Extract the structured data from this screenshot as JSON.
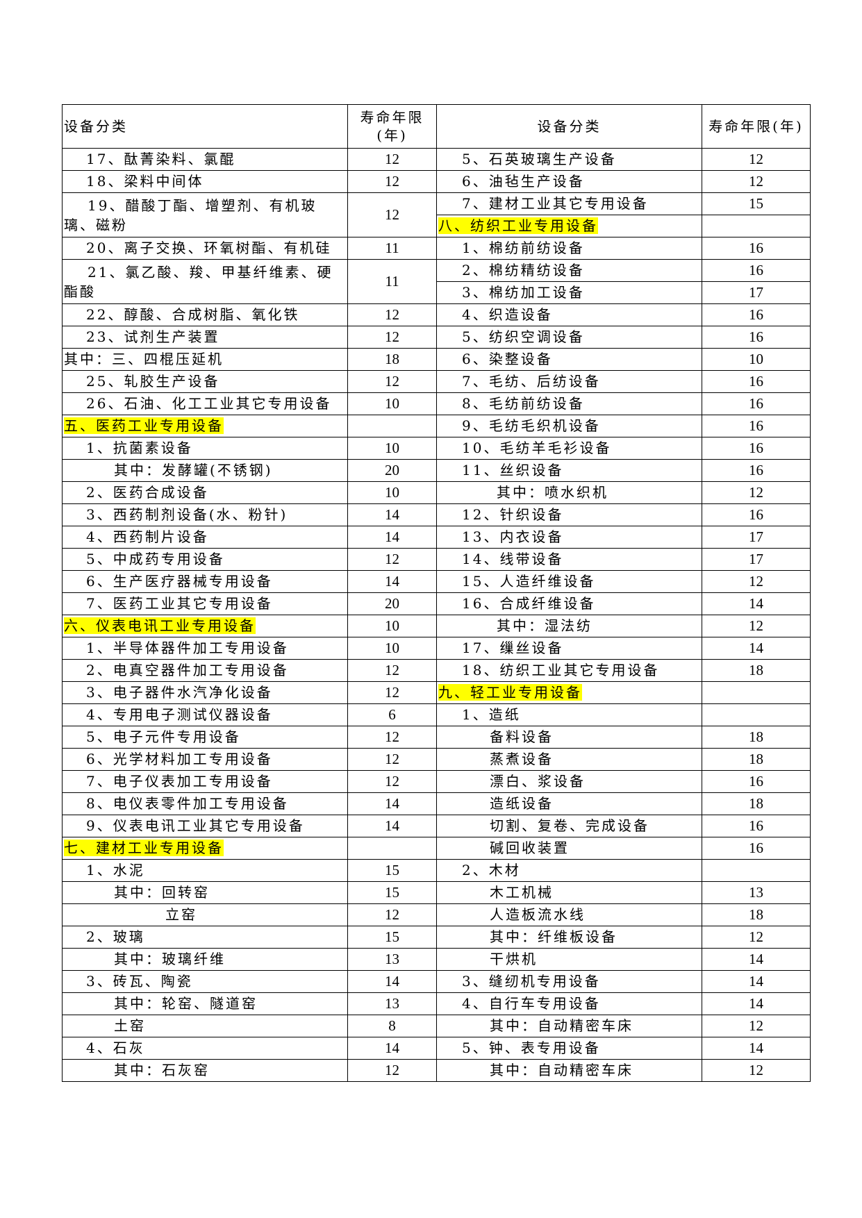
{
  "header": {
    "category_left": "设备分类",
    "years_left": "寿命年限(年)",
    "category_right": "设备分类",
    "years_right": "寿命年限(年)"
  },
  "colors": {
    "highlight": "#ffff00",
    "border": "#000000"
  },
  "left_rows": [
    {
      "text": "17、酞菁染料、氯醌",
      "years": "12",
      "level": 1
    },
    {
      "text": "18、梁料中间体",
      "years": "12",
      "level": 1
    },
    {
      "text": "19、醋酸丁酯、增塑剂、有机玻璃、磁粉",
      "years": "12",
      "level": 1,
      "span": 2
    },
    {
      "text": "20、离子交换、环氧树酯、有机硅",
      "years": "11",
      "level": 1
    },
    {
      "text": "21、氯乙酸、羧、甲基纤维素、硬酯酸",
      "years": "11",
      "level": 1,
      "span": 2
    },
    {
      "text": "22、醇酸、合成树脂、氧化铁",
      "years": "12",
      "level": 1
    },
    {
      "text": "23、试剂生产装置",
      "years": "12",
      "level": 1
    },
    {
      "text": "其中：三、四棍压延机",
      "years": "18",
      "level": 0
    },
    {
      "text": "25、轧胶生产设备",
      "years": "12",
      "level": 1
    },
    {
      "text": "26、石油、化工工业其它专用设备",
      "years": "10",
      "level": 1
    },
    {
      "text": "五、医药工业专用设备",
      "years": "",
      "level": 0,
      "highlight": true
    },
    {
      "text": "1、抗菌素设备",
      "years": "10",
      "level": 1
    },
    {
      "text": "其中：发酵罐(不锈钢)",
      "years": "20",
      "level": 2
    },
    {
      "text": "2、医药合成设备",
      "years": "10",
      "level": 1
    },
    {
      "text": "3、西药制剂设备(水、粉针)",
      "years": "14",
      "level": 1
    },
    {
      "text": "4、西药制片设备",
      "years": "14",
      "level": 1
    },
    {
      "text": "5、中成药专用设备",
      "years": "12",
      "level": 1
    },
    {
      "text": "6、生产医疗器械专用设备",
      "years": "14",
      "level": 1
    },
    {
      "text": "7、医药工业其它专用设备",
      "years": "20",
      "level": 1
    },
    {
      "text": "六、仪表电讯工业专用设备",
      "years": "10",
      "level": 0,
      "highlight": true
    },
    {
      "text": "1、半导体器件加工专用设备",
      "years": "10",
      "level": 1
    },
    {
      "text": "2、电真空器件加工专用设备",
      "years": "12",
      "level": 1
    },
    {
      "text": "3、电子器件水汽净化设备",
      "years": "12",
      "level": 1
    },
    {
      "text": "4、专用电子测试仪器设备",
      "years": "6",
      "level": 1
    },
    {
      "text": "5、电子元件专用设备",
      "years": "12",
      "level": 1
    },
    {
      "text": "6、光学材料加工专用设备",
      "years": "12",
      "level": 1
    },
    {
      "text": "7、电子仪表加工专用设备",
      "years": "12",
      "level": 1
    },
    {
      "text": "8、电仪表零件加工专用设备",
      "years": "14",
      "level": 1
    },
    {
      "text": "9、仪表电讯工业其它专用设备",
      "years": "14",
      "level": 1
    },
    {
      "text": "七、建材工业专用设备",
      "years": "",
      "level": 0,
      "highlight": true
    },
    {
      "text": "1、水泥",
      "years": "15",
      "level": 1
    },
    {
      "text": "其中：回转窑",
      "years": "15",
      "level": 2
    },
    {
      "text": "立窑",
      "years": "12",
      "level": 3
    },
    {
      "text": "2、玻璃",
      "years": "15",
      "level": 1
    },
    {
      "text": "其中：玻璃纤维",
      "years": "13",
      "level": 2
    },
    {
      "text": "3、砖瓦、陶瓷",
      "years": "14",
      "level": 1
    },
    {
      "text": "其中：轮窑、隧道窑",
      "years": "13",
      "level": 2
    },
    {
      "text": "土窑",
      "years": "8",
      "level": 2
    },
    {
      "text": "4、石灰",
      "years": "14",
      "level": 1
    },
    {
      "text": "其中：石灰窑",
      "years": "12",
      "level": 2
    }
  ],
  "right_rows": [
    {
      "text": "5、石英玻璃生产设备",
      "years": "12",
      "level": 1
    },
    {
      "text": "6、油毡生产设备",
      "years": "12",
      "level": 1
    },
    {
      "text": "7、建材工业其它专用设备",
      "years": "15",
      "level": 1
    },
    {
      "text": "八、纺织工业专用设备",
      "years": "",
      "level": 0,
      "highlight": true
    },
    {
      "text": "1、棉纺前纺设备",
      "years": "16",
      "level": 1
    },
    {
      "text": "2、棉纺精纺设备",
      "years": "16",
      "level": 1
    },
    {
      "text": "3、棉纺加工设备",
      "years": "17",
      "level": 1
    },
    {
      "text": "4、织造设备",
      "years": "16",
      "level": 1
    },
    {
      "text": "5、纺织空调设备",
      "years": "16",
      "level": 1
    },
    {
      "text": "6、染整设备",
      "years": "10",
      "level": 1
    },
    {
      "text": "7、毛纺、后纺设备",
      "years": "16",
      "level": 1
    },
    {
      "text": "8、毛纺前纺设备",
      "years": "16",
      "level": 1
    },
    {
      "text": "9、毛纺毛织机设备",
      "years": "16",
      "level": 1
    },
    {
      "text": "10、毛纺羊毛衫设备",
      "years": "16",
      "level": 1
    },
    {
      "text": "11、丝织设备",
      "years": "16",
      "level": 1
    },
    {
      "text": "其中：喷水织机",
      "years": "12",
      "level": 3
    },
    {
      "text": "12、针织设备",
      "years": "16",
      "level": 1
    },
    {
      "text": "13、内衣设备",
      "years": "17",
      "level": 1
    },
    {
      "text": "14、线带设备",
      "years": "17",
      "level": 1
    },
    {
      "text": "15、人造纤维设备",
      "years": "12",
      "level": 1
    },
    {
      "text": "16、合成纤维设备",
      "years": "14",
      "level": 1
    },
    {
      "text": "其中：湿法纺",
      "years": "12",
      "level": 3
    },
    {
      "text": "17、缫丝设备",
      "years": "14",
      "level": 1
    },
    {
      "text": "18、纺织工业其它专用设备",
      "years": "18",
      "level": 1
    },
    {
      "text": "九、轻工业专用设备",
      "years": "",
      "level": 0,
      "highlight": true
    },
    {
      "text": "1、造纸",
      "years": "",
      "level": 1
    },
    {
      "text": "备料设备",
      "years": "18",
      "level": 2
    },
    {
      "text": "蒸煮设备",
      "years": "18",
      "level": 2
    },
    {
      "text": "漂白、浆设备",
      "years": "16",
      "level": 2
    },
    {
      "text": "造纸设备",
      "years": "18",
      "level": 2
    },
    {
      "text": "切割、复卷、完成设备",
      "years": "16",
      "level": 2
    },
    {
      "text": "碱回收装置",
      "years": "16",
      "level": 2
    },
    {
      "text": "2、木材",
      "years": "",
      "level": 1
    },
    {
      "text": "木工机械",
      "years": "13",
      "level": 2
    },
    {
      "text": "人造板流水线",
      "years": "18",
      "level": 2
    },
    {
      "text": "其中：纤维板设备",
      "years": "12",
      "level": 2
    },
    {
      "text": "干烘机",
      "years": "14",
      "level": 2
    },
    {
      "text": "3、缝纫机专用设备",
      "years": "14",
      "level": 1
    },
    {
      "text": "4、自行车专用设备",
      "years": "14",
      "level": 1
    },
    {
      "text": "其中：自动精密车床",
      "years": "12",
      "level": 2
    },
    {
      "text": "5、钟、表专用设备",
      "years": "14",
      "level": 1
    },
    {
      "text": "其中：自动精密车床",
      "years": "12",
      "level": 2
    }
  ]
}
